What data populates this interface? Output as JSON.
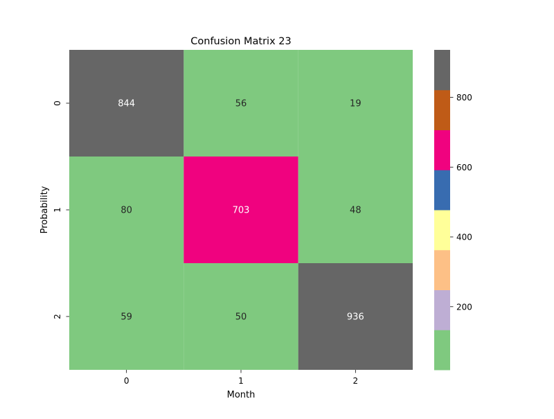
{
  "chart_data": {
    "type": "heatmap",
    "title": "Confusion Matrix 23",
    "xlabel": "Month",
    "ylabel": "Probability",
    "x_categories": [
      "0",
      "1",
      "2"
    ],
    "y_categories": [
      "0",
      "1",
      "2"
    ],
    "values": [
      [
        844,
        56,
        19
      ],
      [
        80,
        703,
        48
      ],
      [
        59,
        50,
        936
      ]
    ],
    "colorbar": {
      "vmin": 19,
      "vmax": 936,
      "ticks": [
        200,
        400,
        600,
        800
      ],
      "colormap": [
        "#7fc97f",
        "#beaed4",
        "#fdc086",
        "#ffff99",
        "#386cb0",
        "#f0027f",
        "#bf5b17",
        "#666666"
      ]
    },
    "annotation_colors": {
      "light": "#ffffff",
      "dark": "#262626"
    }
  }
}
